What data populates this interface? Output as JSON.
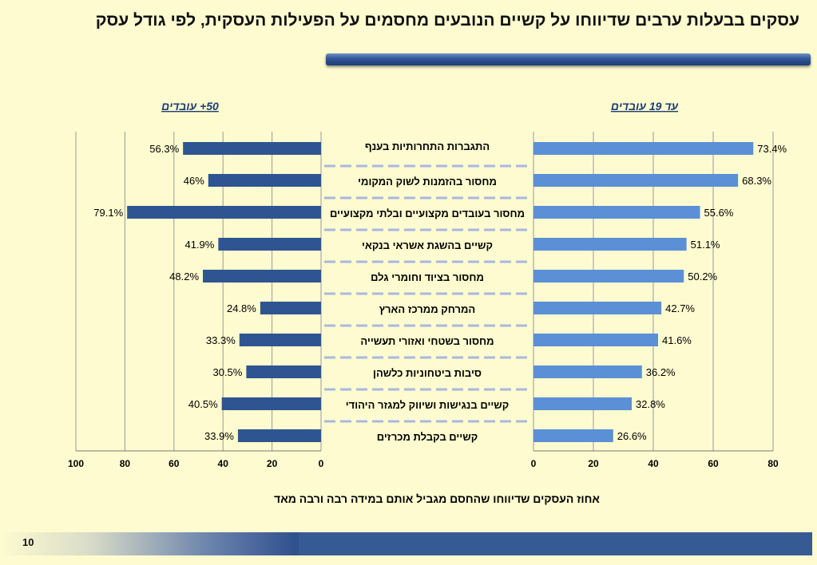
{
  "title": "עסקים בבעלות ערבים שדיווחו על קשיים הנובעים מחסמים על הפעילות העסקית, לפי גודל עסק",
  "page_number": "10",
  "colors": {
    "background": "#fdfbcf",
    "left_bars": "#2e5591",
    "right_bars": "#5b8fd6",
    "separator": "#a8b8e0",
    "footer": "#365a93"
  },
  "chart_data": {
    "type": "bar",
    "orientation": "horizontal",
    "xlabel": "אחוז העסקים שדיווחו שהחסם מגביל אותם במידה רבה ורבה מאד",
    "categories": [
      "התגברות התחרותיות בענף",
      "מחסור בהזמנות לשוק המקומי",
      "מחסור בעובדים מקצועיים ובלתי מקצועיים",
      "קשיים בהשגת אשראי בנקאי",
      "מחסור בציוד וחומרי גלם",
      "המרחק ממרכז הארץ",
      "מחסור בשטחי ואזורי תעשייה",
      "סיבות ביטחוניות כלשהן",
      "קשיים בנגישות ושיווק למגזר היהודי",
      "קשיים בקבלת מכרזים"
    ],
    "panels": [
      {
        "name": "עד 19 עובדים",
        "side": "right",
        "xlim": [
          0,
          80
        ],
        "ticks": [
          0,
          20,
          40,
          60,
          80
        ],
        "values": [
          73.4,
          68.3,
          55.6,
          51.1,
          50.2,
          42.7,
          41.6,
          36.2,
          32.8,
          26.6
        ],
        "labels": [
          "73.4%",
          "68.3%",
          "55.6%",
          "51.1%",
          "50.2%",
          "42.7%",
          "41.6%",
          "36.2%",
          "32.8%",
          "26.6%"
        ]
      },
      {
        "name": "50+ עובדים",
        "side": "left",
        "xlim": [
          0,
          100
        ],
        "ticks": [
          0,
          20,
          40,
          60,
          80,
          100
        ],
        "reversed": true,
        "values": [
          56.3,
          46,
          79.1,
          41.9,
          48.2,
          24.8,
          33.3,
          30.5,
          40.5,
          33.9
        ],
        "labels": [
          "56.3%",
          "46%",
          "79.1%",
          "41.9%",
          "48.2%",
          "24.8%",
          "33.3%",
          "30.5%",
          "40.5%",
          "33.9%"
        ]
      }
    ]
  }
}
